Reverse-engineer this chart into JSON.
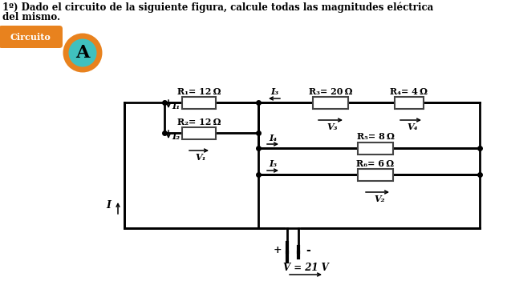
{
  "title_line1": "1º) Dado el circuito de la siguiente figura, calcule todas las magnitudes eléctrica",
  "title_line2": "del mismo.",
  "label_circuito": "Circuito",
  "label_A": "A",
  "R1_label": "R₁= 12 Ω",
  "R2_label": "R₂= 12 Ω",
  "R3_label": "R₃= 20 Ω",
  "R4_label": "R₄= 4 Ω",
  "R5_label": "R₅= 8 Ω",
  "R6_label": "R₆= 6 Ω",
  "I1_label": "I₁",
  "I2_label": "I₂",
  "I3_label": "I₃",
  "I4_label": "I₄",
  "I5_label": "I₅",
  "I_label": "I",
  "V1_label": "V₁",
  "V2_label": "V₂",
  "V3_label": "V₃",
  "V4_label": "V₄",
  "V_label": "V = 21 V",
  "bg_color": "#ffffff",
  "wire_color": "#000000",
  "orange_color": "#e8821e",
  "teal_color": "#40c0be",
  "font_size_title": 8.5,
  "font_size_label": 8,
  "font_size_resistor": 7.5
}
